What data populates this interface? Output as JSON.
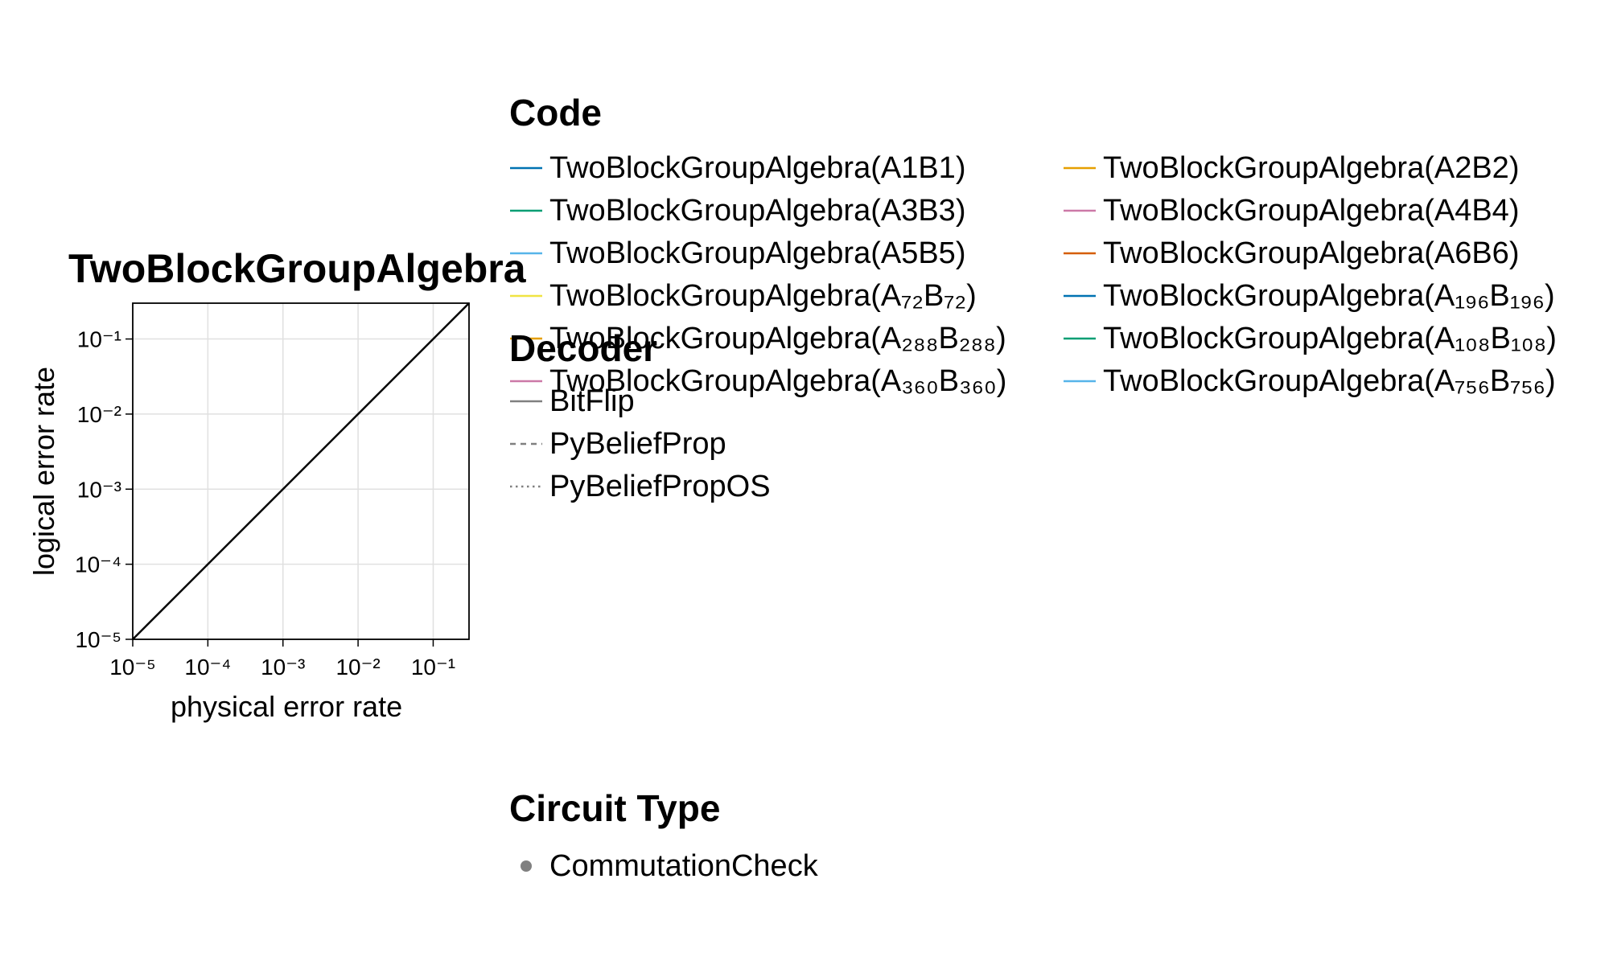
{
  "chart_data": {
    "type": "line",
    "title": "TwoBlockGroupAlgebra",
    "xlabel": "physical error rate",
    "ylabel": "logical error rate",
    "xscale": "log10",
    "yscale": "log10",
    "xlim": [
      1e-05,
      0.3
    ],
    "ylim": [
      1e-05,
      0.3
    ],
    "x_ticks": [
      "10⁻⁵",
      "10⁻⁴",
      "10⁻³",
      "10⁻²",
      "10⁻¹"
    ],
    "y_ticks": [
      "10⁻⁵",
      "10⁻⁴",
      "10⁻³",
      "10⁻²",
      "10⁻¹"
    ],
    "tick_values": [
      1e-05,
      0.0001,
      0.001,
      0.01,
      0.1
    ],
    "grid": true,
    "reference_line": {
      "x": [
        1e-05,
        0.3
      ],
      "y": [
        1e-05,
        0.3
      ],
      "color": "#000000"
    },
    "series": []
  },
  "legends": {
    "code": {
      "title": "Code",
      "items": [
        {
          "label": "TwoBlockGroupAlgebra(A1B1)",
          "color": "#0072B2"
        },
        {
          "label": "TwoBlockGroupAlgebra(A2B2)",
          "color": "#E69F00"
        },
        {
          "label": "TwoBlockGroupAlgebra(A3B3)",
          "color": "#009E73"
        },
        {
          "label": "TwoBlockGroupAlgebra(A4B4)",
          "color": "#CC79A7"
        },
        {
          "label": "TwoBlockGroupAlgebra(A5B5)",
          "color": "#56B4E9"
        },
        {
          "label": "TwoBlockGroupAlgebra(A6B6)",
          "color": "#D55E00"
        },
        {
          "label": "TwoBlockGroupAlgebra(A₇₂B₇₂)",
          "color": "#F0E442"
        },
        {
          "label": "TwoBlockGroupAlgebra(A₁₉₆B₁₉₆)",
          "color": "#0072B2"
        },
        {
          "label": "TwoBlockGroupAlgebra(A₂₈₈B₂₈₈)",
          "color": "#E69F00"
        },
        {
          "label": "TwoBlockGroupAlgebra(A₁₀₈B₁₀₈)",
          "color": "#009E73"
        },
        {
          "label": "TwoBlockGroupAlgebra(A₃₆₀B₃₆₀)",
          "color": "#CC79A7"
        },
        {
          "label": "TwoBlockGroupAlgebra(A₇₅₆B₇₅₆)",
          "color": "#56B4E9"
        }
      ]
    },
    "decoder": {
      "title": "Decoder",
      "items": [
        {
          "label": "BitFlip",
          "style": "solid",
          "color": "#808080"
        },
        {
          "label": "PyBeliefProp",
          "style": "dashed",
          "color": "#808080"
        },
        {
          "label": "PyBeliefPropOS",
          "style": "dotted",
          "color": "#808080"
        }
      ]
    },
    "circuit": {
      "title": "Circuit Type",
      "items": [
        {
          "label": "CommutationCheck",
          "marker": "circle",
          "color": "#808080"
        }
      ]
    }
  }
}
